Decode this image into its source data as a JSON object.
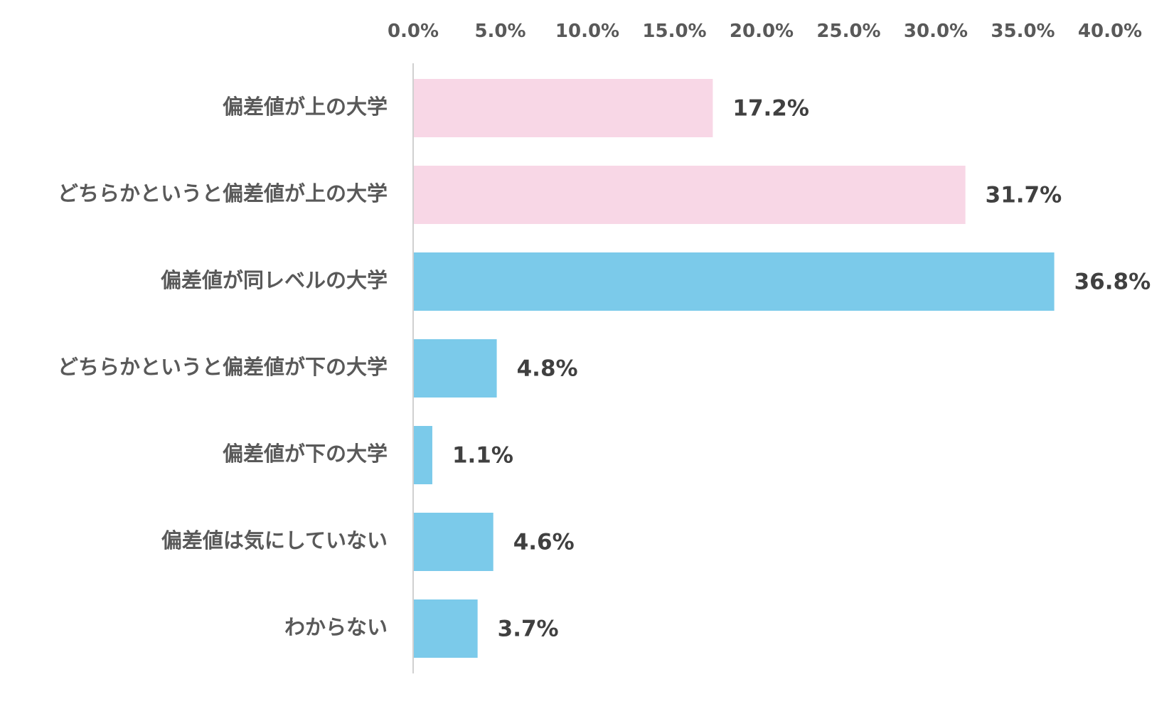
{
  "chart_data": {
    "type": "bar",
    "orientation": "horizontal",
    "title": "",
    "xlabel": "",
    "ylabel": "",
    "xlim": [
      0,
      40
    ],
    "x_ticks": [
      0,
      5,
      10,
      15,
      20,
      25,
      30,
      35,
      40
    ],
    "x_tick_labels": [
      "0.0%",
      "5.0%",
      "10.0%",
      "15.0%",
      "20.0%",
      "25.0%",
      "30.0%",
      "35.0%",
      "40.0%"
    ],
    "x_axis_position": "top",
    "grid": false,
    "legend": "none",
    "categories": [
      "偏差値が上の大学",
      "どちらかというと偏差値が上の大学",
      "偏差値が同レベルの大学",
      "どちらかというと偏差値が下の大学",
      "偏差値が下の大学",
      "偏差値は気にしていない",
      "わからない"
    ],
    "values": [
      17.2,
      31.7,
      36.8,
      4.8,
      1.1,
      4.6,
      3.7
    ],
    "value_labels": [
      "17.2%",
      "31.7%",
      "36.8%",
      "4.8%",
      "1.1%",
      "4.6%",
      "3.7%"
    ],
    "bar_colors": [
      "#F8D7E6",
      "#F8D7E6",
      "#7BCAEA",
      "#7BCAEA",
      "#7BCAEA",
      "#7BCAEA",
      "#7BCAEA"
    ]
  },
  "colors": {
    "axis_line": "#D0D0D0"
  }
}
